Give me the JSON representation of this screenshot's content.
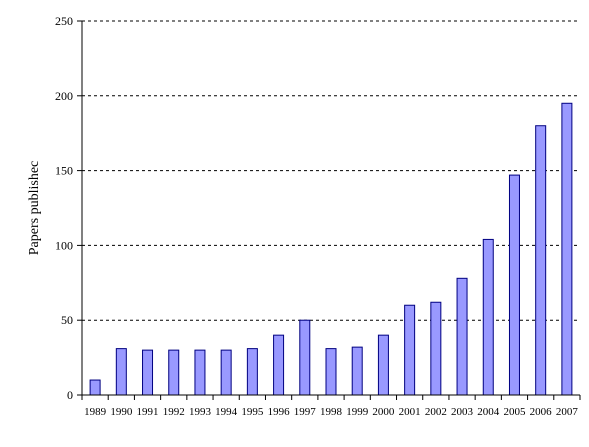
{
  "chart_data": {
    "type": "bar",
    "title": "",
    "xlabel": "",
    "ylabel": "Papers publishec",
    "ylim": [
      0,
      250
    ],
    "yticks": [
      0,
      50,
      100,
      150,
      200,
      250
    ],
    "grid": "horizontal-dashed",
    "categories": [
      "1989",
      "1990",
      "1991",
      "1992",
      "1993",
      "1994",
      "1995",
      "1996",
      "1997",
      "1998",
      "1999",
      "2000",
      "2001",
      "2002",
      "2003",
      "2004",
      "2005",
      "2006",
      "2007"
    ],
    "series": [
      {
        "values": [
          10,
          31,
          30,
          30,
          30,
          30,
          31,
          40,
          50,
          31,
          32,
          40,
          60,
          62,
          78,
          104,
          147,
          180,
          195
        ]
      }
    ],
    "colors": {
      "bar_fill": "#9999ff",
      "bar_stroke": "#000080",
      "grid": "#000000"
    }
  }
}
